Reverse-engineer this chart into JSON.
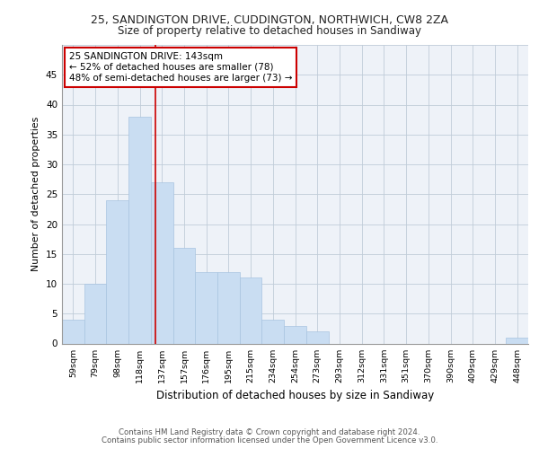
{
  "title1": "25, SANDINGTON DRIVE, CUDDINGTON, NORTHWICH, CW8 2ZA",
  "title2": "Size of property relative to detached houses in Sandiway",
  "xlabel": "Distribution of detached houses by size in Sandiway",
  "ylabel": "Number of detached properties",
  "bin_labels": [
    "59sqm",
    "79sqm",
    "98sqm",
    "118sqm",
    "137sqm",
    "157sqm",
    "176sqm",
    "195sqm",
    "215sqm",
    "234sqm",
    "254sqm",
    "273sqm",
    "293sqm",
    "312sqm",
    "331sqm",
    "351sqm",
    "370sqm",
    "390sqm",
    "409sqm",
    "429sqm",
    "448sqm"
  ],
  "bar_heights": [
    4,
    10,
    24,
    38,
    27,
    16,
    12,
    12,
    11,
    4,
    3,
    2,
    0,
    0,
    0,
    0,
    0,
    0,
    0,
    0,
    1
  ],
  "bar_color": "#c9ddf2",
  "bar_edge_color": "#a8c4e0",
  "grid_color": "#c0ccd8",
  "background_color": "#eef2f8",
  "vline_color": "#cc0000",
  "vline_x": 3.7,
  "annotation_title": "25 SANDINGTON DRIVE: 143sqm",
  "annotation_line1": "← 52% of detached houses are smaller (78)",
  "annotation_line2": "48% of semi-detached houses are larger (73) →",
  "annotation_box_color": "#ffffff",
  "annotation_box_edge": "#cc0000",
  "footer1": "Contains HM Land Registry data © Crown copyright and database right 2024.",
  "footer2": "Contains public sector information licensed under the Open Government Licence v3.0.",
  "ylim": [
    0,
    50
  ],
  "yticks": [
    0,
    5,
    10,
    15,
    20,
    25,
    30,
    35,
    40,
    45,
    50
  ]
}
